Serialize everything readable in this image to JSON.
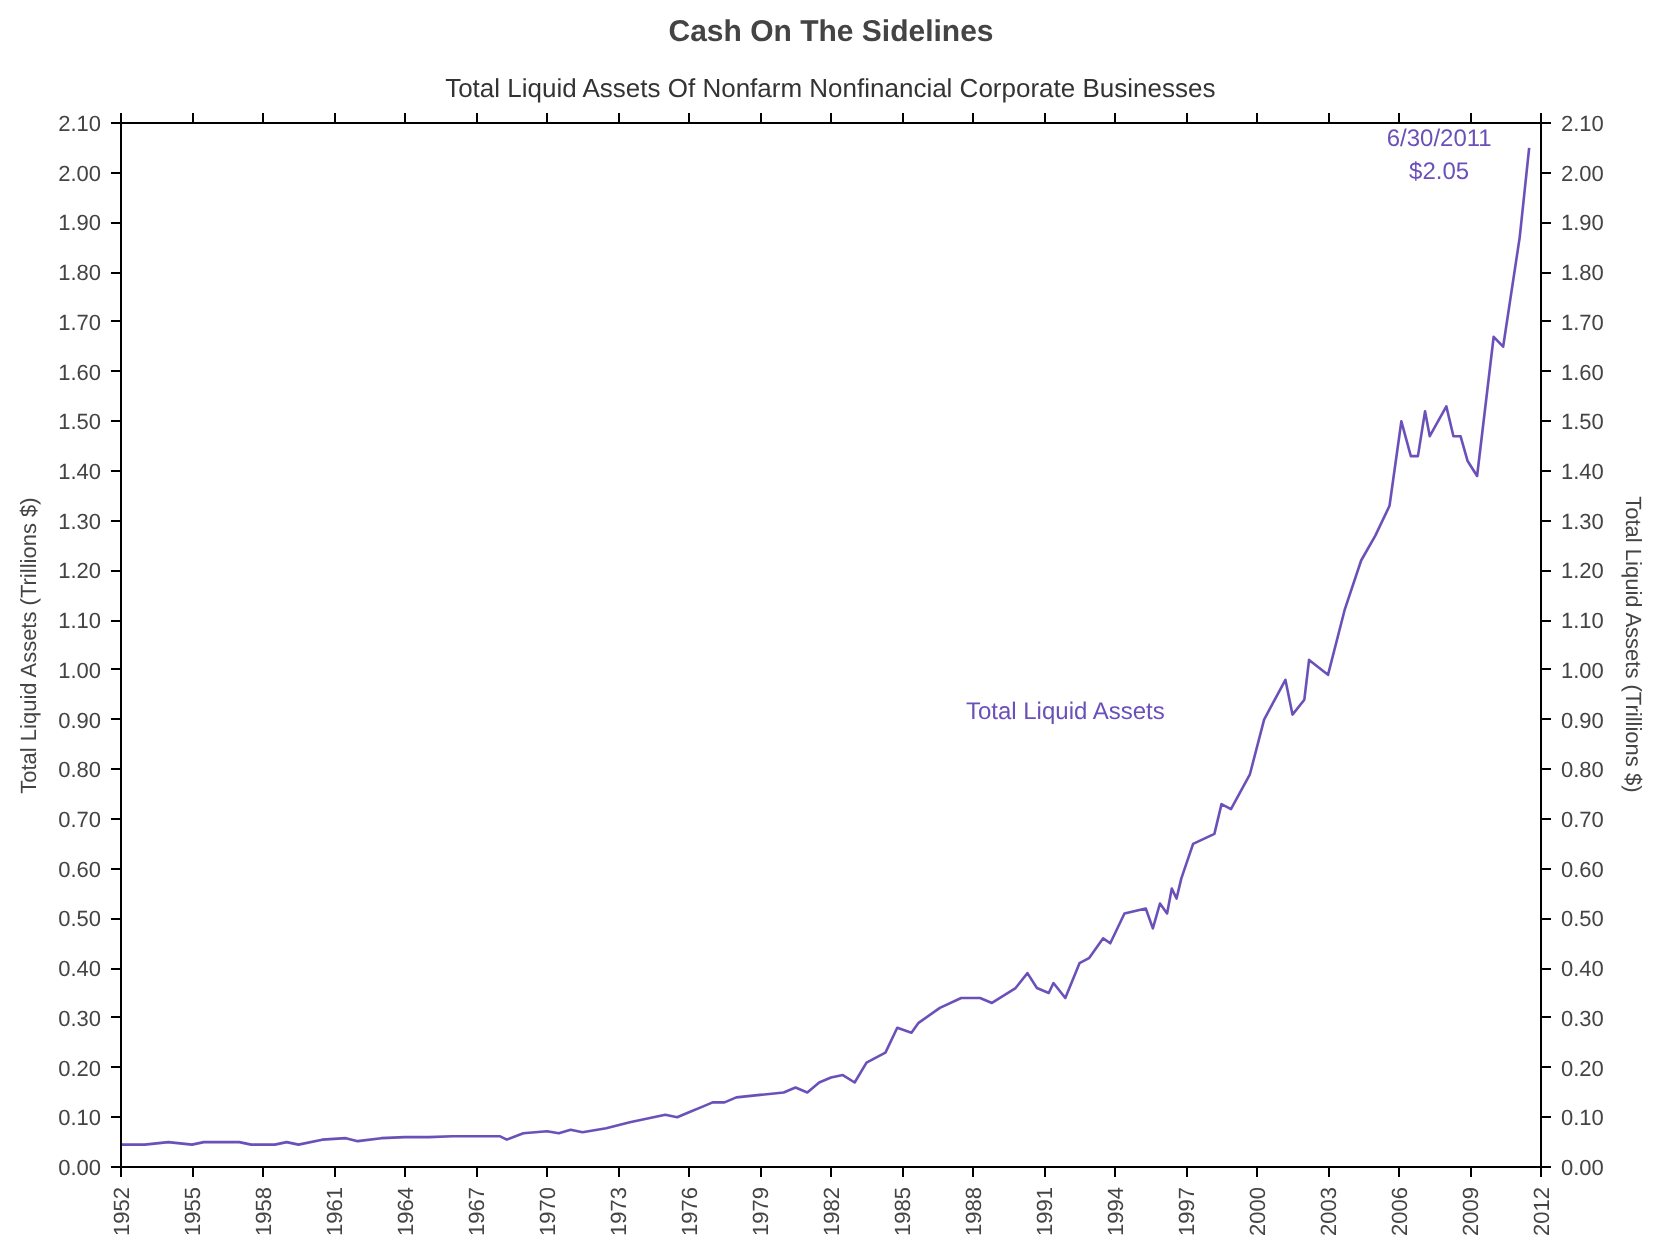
{
  "chart_data": {
    "type": "line",
    "title": "Cash On The Sidelines",
    "subtitle": "Total Liquid Assets Of Nonfarm Nonfinancial Corporate Businesses",
    "ylabel": "Total Liquid Assets (Trillions $)",
    "y2label": "Total Liquid Assets (Trillions $)",
    "x": [
      1952,
      1953,
      1954,
      1955,
      1955.5,
      1957,
      1957.5,
      1958.5,
      1959,
      1959.5,
      1960.5,
      1961.5,
      1962,
      1963,
      1964,
      1965,
      1966,
      1968,
      1968.3,
      1969,
      1970,
      1970.5,
      1971,
      1971.5,
      1972.5,
      1973.5,
      1974.5,
      1975,
      1975.5,
      1976,
      1976.5,
      1977,
      1977.5,
      1978,
      1979,
      1980,
      1980.5,
      1981,
      1981.5,
      1982,
      1982.5,
      1983,
      1983.5,
      1984.3,
      1984.8,
      1985.4,
      1985.7,
      1986.6,
      1987.5,
      1988.3,
      1988.8,
      1989.8,
      1990.3,
      1990.7,
      1991.2,
      1991.4,
      1991.9,
      1992.5,
      1992.9,
      1993.5,
      1993.8,
      1994.4,
      1995.3,
      1995.6,
      1995.9,
      1996.2,
      1996.4,
      1996.6,
      1996.8,
      1997.3,
      1998.2,
      1998.5,
      1998.9,
      1999.7,
      2000.3,
      2001.2,
      2001.5,
      2002,
      2002.2,
      2003,
      2003.7,
      2004.4,
      2005,
      2005.6,
      2006.1,
      2006.5,
      2006.8,
      2007.1,
      2007.3,
      2008,
      2008.3,
      2008.6,
      2008.9,
      2009.3,
      2010,
      2010.4,
      2011.1,
      2011.5
    ],
    "series": [
      {
        "name": "Total Liquid Assets",
        "color": "#6a50b8",
        "values": [
          0.045,
          0.045,
          0.05,
          0.045,
          0.05,
          0.05,
          0.045,
          0.045,
          0.05,
          0.045,
          0.055,
          0.058,
          0.052,
          0.058,
          0.06,
          0.06,
          0.062,
          0.062,
          0.055,
          0.068,
          0.072,
          0.068,
          0.075,
          0.07,
          0.078,
          0.09,
          0.1,
          0.105,
          0.1,
          0.11,
          0.12,
          0.13,
          0.13,
          0.14,
          0.145,
          0.15,
          0.16,
          0.15,
          0.17,
          0.18,
          0.185,
          0.17,
          0.21,
          0.23,
          0.28,
          0.27,
          0.29,
          0.32,
          0.34,
          0.34,
          0.33,
          0.36,
          0.39,
          0.36,
          0.35,
          0.37,
          0.34,
          0.41,
          0.42,
          0.46,
          0.45,
          0.51,
          0.52,
          0.48,
          0.53,
          0.51,
          0.56,
          0.54,
          0.58,
          0.65,
          0.67,
          0.73,
          0.72,
          0.79,
          0.9,
          0.98,
          0.91,
          0.94,
          1.02,
          0.99,
          1.12,
          1.22,
          1.27,
          1.33,
          1.5,
          1.43,
          1.43,
          1.52,
          1.47,
          1.53,
          1.47,
          1.47,
          1.42,
          1.39,
          1.67,
          1.65,
          1.87,
          2.05
        ]
      }
    ],
    "xlim": [
      1952,
      2012
    ],
    "xticks": [
      1952,
      1955,
      1958,
      1961,
      1964,
      1967,
      1970,
      1973,
      1976,
      1979,
      1982,
      1985,
      1988,
      1991,
      1994,
      1997,
      2000,
      2003,
      2006,
      2009,
      2012
    ],
    "ylim": [
      0,
      2.1
    ],
    "yticks": [
      {
        "value": 0,
        "label": "0.00"
      },
      {
        "value": 0.1,
        "label": "0.10"
      },
      {
        "value": 0.2,
        "label": "0.20"
      },
      {
        "value": 0.3,
        "label": "0.30"
      },
      {
        "value": 0.4,
        "label": "0.40"
      },
      {
        "value": 0.5,
        "label": "0.50"
      },
      {
        "value": 0.6,
        "label": "0.60"
      },
      {
        "value": 0.7,
        "label": "0.70"
      },
      {
        "value": 0.8,
        "label": "0.80"
      },
      {
        "value": 0.9,
        "label": "0.90"
      },
      {
        "value": 1.0,
        "label": "1.00"
      },
      {
        "value": 1.1,
        "label": "1.10"
      },
      {
        "value": 1.2,
        "label": "1.20"
      },
      {
        "value": 1.3,
        "label": "1.30"
      },
      {
        "value": 1.4,
        "label": "1.40"
      },
      {
        "value": 1.5,
        "label": "1.50"
      },
      {
        "value": 1.6,
        "label": "1.60"
      },
      {
        "value": 1.7,
        "label": "1.70"
      },
      {
        "value": 1.8,
        "label": "1.80"
      },
      {
        "value": 1.9,
        "label": "1.90"
      },
      {
        "value": 2.0,
        "label": "2.00"
      },
      {
        "value": 2.1,
        "label": "2.10"
      }
    ],
    "y2lim": [
      0,
      2.1
    ],
    "y2ticks": [
      {
        "value": 0,
        "label": "0.00"
      },
      {
        "value": 0.1,
        "label": "0.10"
      },
      {
        "value": 0.2,
        "label": "0.20"
      },
      {
        "value": 0.3,
        "label": "0.30"
      },
      {
        "value": 0.4,
        "label": "0.40"
      },
      {
        "value": 0.5,
        "label": "0.50"
      },
      {
        "value": 0.6,
        "label": "0.60"
      },
      {
        "value": 0.7,
        "label": "0.70"
      },
      {
        "value": 0.8,
        "label": "0.80"
      },
      {
        "value": 0.9,
        "label": "0.90"
      },
      {
        "value": 1.0,
        "label": "1.00"
      },
      {
        "value": 1.1,
        "label": "1.10"
      },
      {
        "value": 1.2,
        "label": "1.20"
      },
      {
        "value": 1.3,
        "label": "1.30"
      },
      {
        "value": 1.4,
        "label": "1.40"
      },
      {
        "value": 1.5,
        "label": "1.50"
      },
      {
        "value": 1.6,
        "label": "1.60"
      },
      {
        "value": 1.7,
        "label": "1.70"
      },
      {
        "value": 1.8,
        "label": "1.80"
      },
      {
        "value": 1.9,
        "label": "1.90"
      },
      {
        "value": 2.0,
        "label": "2.00"
      },
      {
        "value": 2.1,
        "label": "2.10"
      }
    ],
    "annotations": [
      {
        "text": "6/30/2011\n$2.05",
        "x": 2011.5,
        "y": 2.05
      }
    ],
    "grid": false,
    "legend": false,
    "marker": "none",
    "line_style": "solid"
  }
}
